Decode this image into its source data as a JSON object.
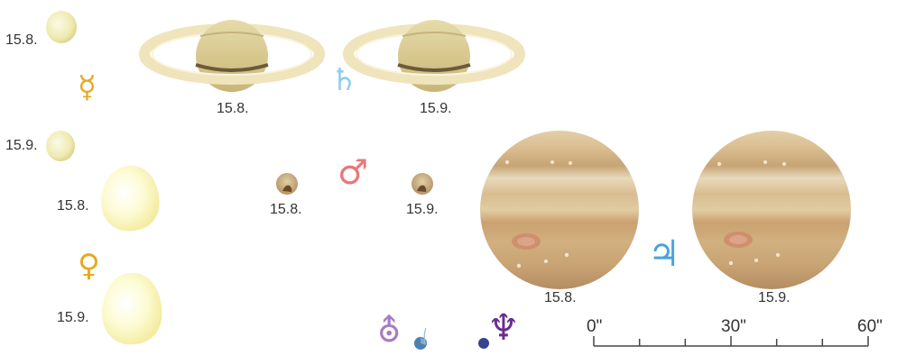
{
  "dates": {
    "first": "15.8.",
    "second": "15.9."
  },
  "symbols": {
    "mercury": "☿",
    "venus": "♀",
    "saturn": "♄",
    "mars": "♂",
    "jupiter": "♃",
    "uranus": "⛢",
    "neptune": "♆"
  },
  "colors": {
    "mercury_symbol": "#e8a820",
    "venus_symbol": "#e8a820",
    "saturn_symbol": "#8fcde8",
    "mars_symbol": "#e8787a",
    "jupiter_symbol": "#4aa3de",
    "uranus_symbol": "#a77cc0",
    "neptune_symbol": "#6a2d8a",
    "uranus_disc": "#4f7fb0",
    "neptune_disc": "#34448f"
  },
  "scale": {
    "ticks": [
      "0\"",
      "30\"",
      "60\""
    ],
    "range_arcsec": [
      0,
      60
    ],
    "minor_step_arcsec": 10
  }
}
